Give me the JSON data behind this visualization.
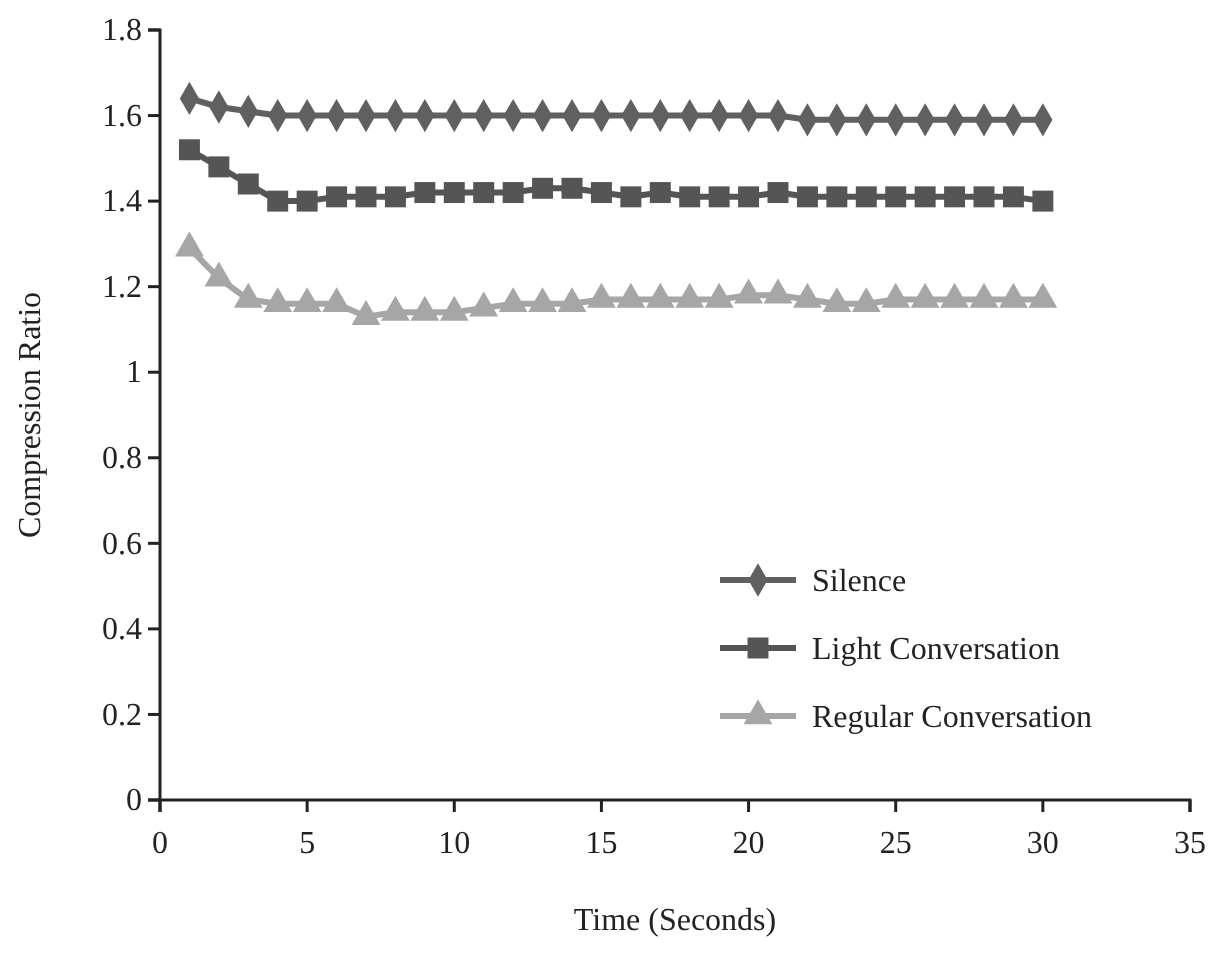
{
  "chart_data": {
    "type": "line",
    "xlabel": "Time (Seconds)",
    "ylabel": "Compression Ratio",
    "x": [
      1,
      2,
      3,
      4,
      5,
      6,
      7,
      8,
      9,
      10,
      11,
      12,
      13,
      14,
      15,
      16,
      17,
      18,
      19,
      20,
      21,
      22,
      23,
      24,
      25,
      26,
      27,
      28,
      29,
      30
    ],
    "xlim": [
      0,
      35
    ],
    "xticks": [
      0,
      5,
      10,
      15,
      20,
      25,
      30,
      35
    ],
    "ylim": [
      0,
      1.8
    ],
    "yticks": [
      0,
      {
        "value": 0.2,
        "label": "0.2"
      },
      {
        "value": 0.4,
        "label": "0.4"
      },
      {
        "value": 0.6,
        "label": "0.6"
      },
      {
        "value": 0.8,
        "label": "0.8"
      },
      1,
      {
        "value": 1.2,
        "label": "1.2"
      },
      {
        "value": 1.4,
        "label": "1.4"
      },
      {
        "value": 1.6,
        "label": "1.6"
      },
      {
        "value": 1.8,
        "label": "1.8"
      }
    ],
    "legend": "bottom right",
    "grid": false,
    "series": [
      {
        "name": "Silence",
        "color": "#606060",
        "marker": "diamond",
        "values": [
          1.64,
          1.62,
          1.61,
          1.6,
          1.6,
          1.6,
          1.6,
          1.6,
          1.6,
          1.6,
          1.6,
          1.6,
          1.6,
          1.6,
          1.6,
          1.6,
          1.6,
          1.6,
          1.6,
          1.6,
          1.6,
          1.59,
          1.59,
          1.59,
          1.59,
          1.59,
          1.59,
          1.59,
          1.59,
          1.59
        ]
      },
      {
        "name": "Light Conversation",
        "color": "#555555",
        "marker": "square",
        "values": [
          1.52,
          1.48,
          1.44,
          1.4,
          1.4,
          1.41,
          1.41,
          1.41,
          1.42,
          1.42,
          1.42,
          1.42,
          1.43,
          1.43,
          1.42,
          1.41,
          1.42,
          1.41,
          1.41,
          1.41,
          1.42,
          1.41,
          1.41,
          1.41,
          1.41,
          1.41,
          1.41,
          1.41,
          1.41,
          1.4
        ]
      },
      {
        "name": "Regular Conversation",
        "color": "#a6a6a6",
        "marker": "triangle",
        "values": [
          1.29,
          1.22,
          1.17,
          1.16,
          1.16,
          1.16,
          1.13,
          1.14,
          1.14,
          1.14,
          1.15,
          1.16,
          1.16,
          1.16,
          1.17,
          1.17,
          1.17,
          1.17,
          1.17,
          1.18,
          1.18,
          1.17,
          1.16,
          1.16,
          1.17,
          1.17,
          1.17,
          1.17,
          1.17,
          1.17
        ]
      }
    ]
  }
}
